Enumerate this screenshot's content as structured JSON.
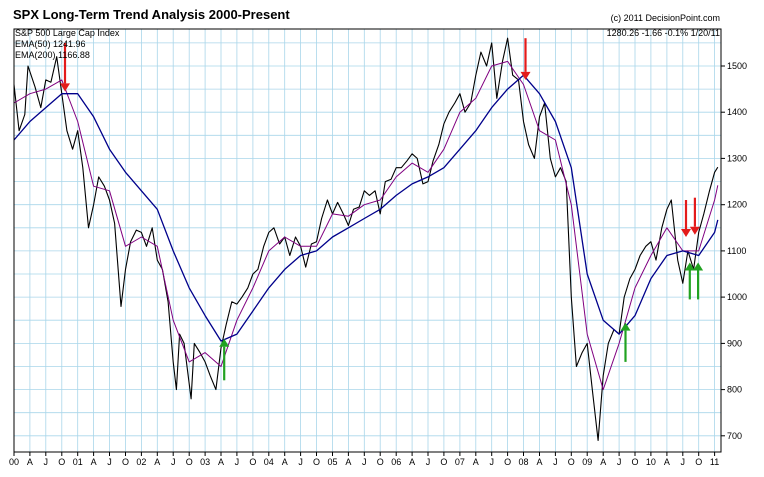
{
  "header": {
    "title": "SPX Long-Term Trend Analysis 2000-Present",
    "copyright": "(c) 2011 DecisionPoint.com",
    "series_label": "S&P 500 Large Cap Index",
    "ema50_label": "EMA(50) 1241.96",
    "ema200_label": "EMA(200) 1166.88",
    "quote": "1280.26  -1.66  -0.1%  1/20/11"
  },
  "colors": {
    "background": "#ffffff",
    "plot_background": "#ffffff",
    "grid": "#a9d6ea",
    "price": "#000000",
    "ema50": "#800080",
    "ema200": "#00008b",
    "sell_arrow": "#e31b1b",
    "buy_arrow": "#21a221"
  },
  "chart_data": {
    "type": "line",
    "title": "SPX Long-Term Trend Analysis 2000-Present",
    "subtitle": "S&P 500 Large Cap Index",
    "y_axis": {
      "position": "right",
      "ylim": [
        665,
        1580
      ],
      "ticks": [
        700,
        800,
        900,
        1000,
        1100,
        1200,
        1300,
        1400,
        1500
      ]
    },
    "x_axis": {
      "xlim": [
        2000.0,
        2011.1
      ],
      "ticks": [
        {
          "t": 2000.0,
          "label": "00"
        },
        {
          "t": 2000.25,
          "label": "A"
        },
        {
          "t": 2000.5,
          "label": "J"
        },
        {
          "t": 2000.75,
          "label": "O"
        },
        {
          "t": 2001.0,
          "label": "01"
        },
        {
          "t": 2001.25,
          "label": "A"
        },
        {
          "t": 2001.5,
          "label": "J"
        },
        {
          "t": 2001.75,
          "label": "O"
        },
        {
          "t": 2002.0,
          "label": "02"
        },
        {
          "t": 2002.25,
          "label": "A"
        },
        {
          "t": 2002.5,
          "label": "J"
        },
        {
          "t": 2002.75,
          "label": "O"
        },
        {
          "t": 2003.0,
          "label": "03"
        },
        {
          "t": 2003.25,
          "label": "A"
        },
        {
          "t": 2003.5,
          "label": "J"
        },
        {
          "t": 2003.75,
          "label": "O"
        },
        {
          "t": 2004.0,
          "label": "04"
        },
        {
          "t": 2004.25,
          "label": "A"
        },
        {
          "t": 2004.5,
          "label": "J"
        },
        {
          "t": 2004.75,
          "label": "O"
        },
        {
          "t": 2005.0,
          "label": "05"
        },
        {
          "t": 2005.25,
          "label": "A"
        },
        {
          "t": 2005.5,
          "label": "J"
        },
        {
          "t": 2005.75,
          "label": "O"
        },
        {
          "t": 2006.0,
          "label": "06"
        },
        {
          "t": 2006.25,
          "label": "A"
        },
        {
          "t": 2006.5,
          "label": "J"
        },
        {
          "t": 2006.75,
          "label": "O"
        },
        {
          "t": 2007.0,
          "label": "07"
        },
        {
          "t": 2007.25,
          "label": "A"
        },
        {
          "t": 2007.5,
          "label": "J"
        },
        {
          "t": 2007.75,
          "label": "O"
        },
        {
          "t": 2008.0,
          "label": "08"
        },
        {
          "t": 2008.25,
          "label": "A"
        },
        {
          "t": 2008.5,
          "label": "J"
        },
        {
          "t": 2008.75,
          "label": "O"
        },
        {
          "t": 2009.0,
          "label": "09"
        },
        {
          "t": 2009.25,
          "label": "A"
        },
        {
          "t": 2009.5,
          "label": "J"
        },
        {
          "t": 2009.75,
          "label": "O"
        },
        {
          "t": 2010.0,
          "label": "10"
        },
        {
          "t": 2010.25,
          "label": "A"
        },
        {
          "t": 2010.5,
          "label": "J"
        },
        {
          "t": 2010.75,
          "label": "O"
        },
        {
          "t": 2011.0,
          "label": "11"
        }
      ]
    },
    "grid": true,
    "series": [
      {
        "name": "S&P 500 Large Cap Index",
        "color": "#000000",
        "points": [
          [
            2000.0,
            1460
          ],
          [
            2000.08,
            1360
          ],
          [
            2000.17,
            1395
          ],
          [
            2000.22,
            1500
          ],
          [
            2000.33,
            1455
          ],
          [
            2000.42,
            1410
          ],
          [
            2000.5,
            1470
          ],
          [
            2000.58,
            1465
          ],
          [
            2000.67,
            1520
          ],
          [
            2000.75,
            1440
          ],
          [
            2000.83,
            1360
          ],
          [
            2000.92,
            1320
          ],
          [
            2001.0,
            1360
          ],
          [
            2001.08,
            1280
          ],
          [
            2001.17,
            1150
          ],
          [
            2001.25,
            1200
          ],
          [
            2001.33,
            1260
          ],
          [
            2001.42,
            1240
          ],
          [
            2001.5,
            1210
          ],
          [
            2001.58,
            1160
          ],
          [
            2001.68,
            980
          ],
          [
            2001.75,
            1060
          ],
          [
            2001.83,
            1120
          ],
          [
            2001.92,
            1145
          ],
          [
            2002.0,
            1140
          ],
          [
            2002.08,
            1110
          ],
          [
            2002.17,
            1150
          ],
          [
            2002.25,
            1080
          ],
          [
            2002.33,
            1060
          ],
          [
            2002.42,
            990
          ],
          [
            2002.5,
            860
          ],
          [
            2002.55,
            800
          ],
          [
            2002.6,
            920
          ],
          [
            2002.67,
            900
          ],
          [
            2002.78,
            780
          ],
          [
            2002.83,
            900
          ],
          [
            2002.92,
            880
          ],
          [
            2003.0,
            860
          ],
          [
            2003.08,
            830
          ],
          [
            2003.17,
            800
          ],
          [
            2003.25,
            890
          ],
          [
            2003.33,
            940
          ],
          [
            2003.42,
            990
          ],
          [
            2003.5,
            985
          ],
          [
            2003.58,
            1000
          ],
          [
            2003.67,
            1020
          ],
          [
            2003.75,
            1050
          ],
          [
            2003.83,
            1060
          ],
          [
            2003.92,
            1110
          ],
          [
            2004.0,
            1140
          ],
          [
            2004.08,
            1150
          ],
          [
            2004.17,
            1115
          ],
          [
            2004.25,
            1130
          ],
          [
            2004.33,
            1090
          ],
          [
            2004.42,
            1130
          ],
          [
            2004.5,
            1110
          ],
          [
            2004.58,
            1065
          ],
          [
            2004.67,
            1115
          ],
          [
            2004.75,
            1120
          ],
          [
            2004.83,
            1170
          ],
          [
            2004.92,
            1210
          ],
          [
            2005.0,
            1180
          ],
          [
            2005.08,
            1205
          ],
          [
            2005.17,
            1180
          ],
          [
            2005.25,
            1155
          ],
          [
            2005.33,
            1190
          ],
          [
            2005.42,
            1195
          ],
          [
            2005.5,
            1230
          ],
          [
            2005.58,
            1220
          ],
          [
            2005.67,
            1230
          ],
          [
            2005.75,
            1180
          ],
          [
            2005.83,
            1250
          ],
          [
            2005.92,
            1255
          ],
          [
            2006.0,
            1280
          ],
          [
            2006.08,
            1280
          ],
          [
            2006.17,
            1295
          ],
          [
            2006.25,
            1310
          ],
          [
            2006.33,
            1300
          ],
          [
            2006.42,
            1245
          ],
          [
            2006.5,
            1250
          ],
          [
            2006.58,
            1295
          ],
          [
            2006.67,
            1330
          ],
          [
            2006.75,
            1375
          ],
          [
            2006.83,
            1400
          ],
          [
            2006.92,
            1420
          ],
          [
            2007.0,
            1440
          ],
          [
            2007.08,
            1400
          ],
          [
            2007.17,
            1420
          ],
          [
            2007.25,
            1480
          ],
          [
            2007.33,
            1530
          ],
          [
            2007.42,
            1500
          ],
          [
            2007.5,
            1550
          ],
          [
            2007.58,
            1430
          ],
          [
            2007.67,
            1510
          ],
          [
            2007.75,
            1560
          ],
          [
            2007.83,
            1480
          ],
          [
            2007.92,
            1470
          ],
          [
            2008.0,
            1380
          ],
          [
            2008.08,
            1330
          ],
          [
            2008.17,
            1300
          ],
          [
            2008.25,
            1390
          ],
          [
            2008.33,
            1420
          ],
          [
            2008.42,
            1300
          ],
          [
            2008.5,
            1260
          ],
          [
            2008.58,
            1280
          ],
          [
            2008.67,
            1250
          ],
          [
            2008.75,
            1000
          ],
          [
            2008.83,
            850
          ],
          [
            2008.92,
            880
          ],
          [
            2009.0,
            900
          ],
          [
            2009.08,
            800
          ],
          [
            2009.17,
            690
          ],
          [
            2009.25,
            830
          ],
          [
            2009.33,
            900
          ],
          [
            2009.42,
            930
          ],
          [
            2009.5,
            920
          ],
          [
            2009.58,
            1000
          ],
          [
            2009.67,
            1040
          ],
          [
            2009.75,
            1060
          ],
          [
            2009.83,
            1090
          ],
          [
            2009.92,
            1110
          ],
          [
            2010.0,
            1120
          ],
          [
            2010.08,
            1080
          ],
          [
            2010.17,
            1150
          ],
          [
            2010.25,
            1190
          ],
          [
            2010.32,
            1210
          ],
          [
            2010.42,
            1080
          ],
          [
            2010.5,
            1030
          ],
          [
            2010.58,
            1100
          ],
          [
            2010.67,
            1060
          ],
          [
            2010.75,
            1140
          ],
          [
            2010.83,
            1180
          ],
          [
            2010.92,
            1230
          ],
          [
            2011.0,
            1270
          ],
          [
            2011.05,
            1281
          ]
        ]
      },
      {
        "name": "EMA(50)",
        "color": "#800080",
        "points": [
          [
            2000.0,
            1420
          ],
          [
            2000.25,
            1440
          ],
          [
            2000.5,
            1450
          ],
          [
            2000.75,
            1470
          ],
          [
            2001.0,
            1380
          ],
          [
            2001.25,
            1240
          ],
          [
            2001.5,
            1230
          ],
          [
            2001.75,
            1110
          ],
          [
            2002.0,
            1130
          ],
          [
            2002.25,
            1110
          ],
          [
            2002.5,
            950
          ],
          [
            2002.75,
            860
          ],
          [
            2003.0,
            880
          ],
          [
            2003.25,
            850
          ],
          [
            2003.5,
            950
          ],
          [
            2003.75,
            1020
          ],
          [
            2004.0,
            1100
          ],
          [
            2004.25,
            1130
          ],
          [
            2004.5,
            1110
          ],
          [
            2004.75,
            1110
          ],
          [
            2005.0,
            1180
          ],
          [
            2005.25,
            1175
          ],
          [
            2005.5,
            1200
          ],
          [
            2005.75,
            1210
          ],
          [
            2006.0,
            1260
          ],
          [
            2006.25,
            1290
          ],
          [
            2006.5,
            1270
          ],
          [
            2006.75,
            1320
          ],
          [
            2007.0,
            1400
          ],
          [
            2007.25,
            1430
          ],
          [
            2007.5,
            1500
          ],
          [
            2007.75,
            1510
          ],
          [
            2008.0,
            1460
          ],
          [
            2008.25,
            1360
          ],
          [
            2008.5,
            1340
          ],
          [
            2008.75,
            1200
          ],
          [
            2009.0,
            920
          ],
          [
            2009.25,
            800
          ],
          [
            2009.5,
            900
          ],
          [
            2009.75,
            1020
          ],
          [
            2010.0,
            1090
          ],
          [
            2010.25,
            1150
          ],
          [
            2010.5,
            1100
          ],
          [
            2010.75,
            1100
          ],
          [
            2011.0,
            1210
          ],
          [
            2011.05,
            1242
          ]
        ]
      },
      {
        "name": "EMA(200)",
        "color": "#00008b",
        "points": [
          [
            2000.0,
            1340
          ],
          [
            2000.25,
            1380
          ],
          [
            2000.5,
            1410
          ],
          [
            2000.75,
            1440
          ],
          [
            2001.0,
            1440
          ],
          [
            2001.25,
            1390
          ],
          [
            2001.5,
            1320
          ],
          [
            2001.75,
            1270
          ],
          [
            2002.0,
            1230
          ],
          [
            2002.25,
            1190
          ],
          [
            2002.5,
            1100
          ],
          [
            2002.75,
            1020
          ],
          [
            2003.0,
            960
          ],
          [
            2003.25,
            905
          ],
          [
            2003.5,
            920
          ],
          [
            2003.75,
            970
          ],
          [
            2004.0,
            1020
          ],
          [
            2004.25,
            1060
          ],
          [
            2004.5,
            1090
          ],
          [
            2004.75,
            1100
          ],
          [
            2005.0,
            1130
          ],
          [
            2005.25,
            1150
          ],
          [
            2005.5,
            1170
          ],
          [
            2005.75,
            1190
          ],
          [
            2006.0,
            1220
          ],
          [
            2006.25,
            1245
          ],
          [
            2006.5,
            1260
          ],
          [
            2006.75,
            1280
          ],
          [
            2007.0,
            1320
          ],
          [
            2007.25,
            1360
          ],
          [
            2007.5,
            1410
          ],
          [
            2007.75,
            1450
          ],
          [
            2008.0,
            1480
          ],
          [
            2008.25,
            1440
          ],
          [
            2008.5,
            1380
          ],
          [
            2008.75,
            1280
          ],
          [
            2009.0,
            1050
          ],
          [
            2009.25,
            950
          ],
          [
            2009.5,
            920
          ],
          [
            2009.75,
            960
          ],
          [
            2010.0,
            1040
          ],
          [
            2010.25,
            1090
          ],
          [
            2010.5,
            1100
          ],
          [
            2010.75,
            1090
          ],
          [
            2011.0,
            1140
          ],
          [
            2011.05,
            1167
          ]
        ]
      }
    ],
    "annotations": [
      {
        "type": "sell-arrow",
        "t": 2000.8,
        "from": 1550,
        "to": 1445
      },
      {
        "type": "buy-arrow",
        "t": 2003.3,
        "from": 820,
        "to": 910
      },
      {
        "type": "sell-arrow",
        "t": 2008.03,
        "from": 1560,
        "to": 1470
      },
      {
        "type": "buy-arrow",
        "t": 2009.6,
        "from": 860,
        "to": 945
      },
      {
        "type": "sell-arrow",
        "t": 2010.55,
        "from": 1210,
        "to": 1130
      },
      {
        "type": "sell-arrow",
        "t": 2010.69,
        "from": 1215,
        "to": 1135
      },
      {
        "type": "buy-arrow",
        "t": 2010.61,
        "from": 995,
        "to": 1075
      },
      {
        "type": "buy-arrow",
        "t": 2010.74,
        "from": 995,
        "to": 1075
      }
    ]
  }
}
